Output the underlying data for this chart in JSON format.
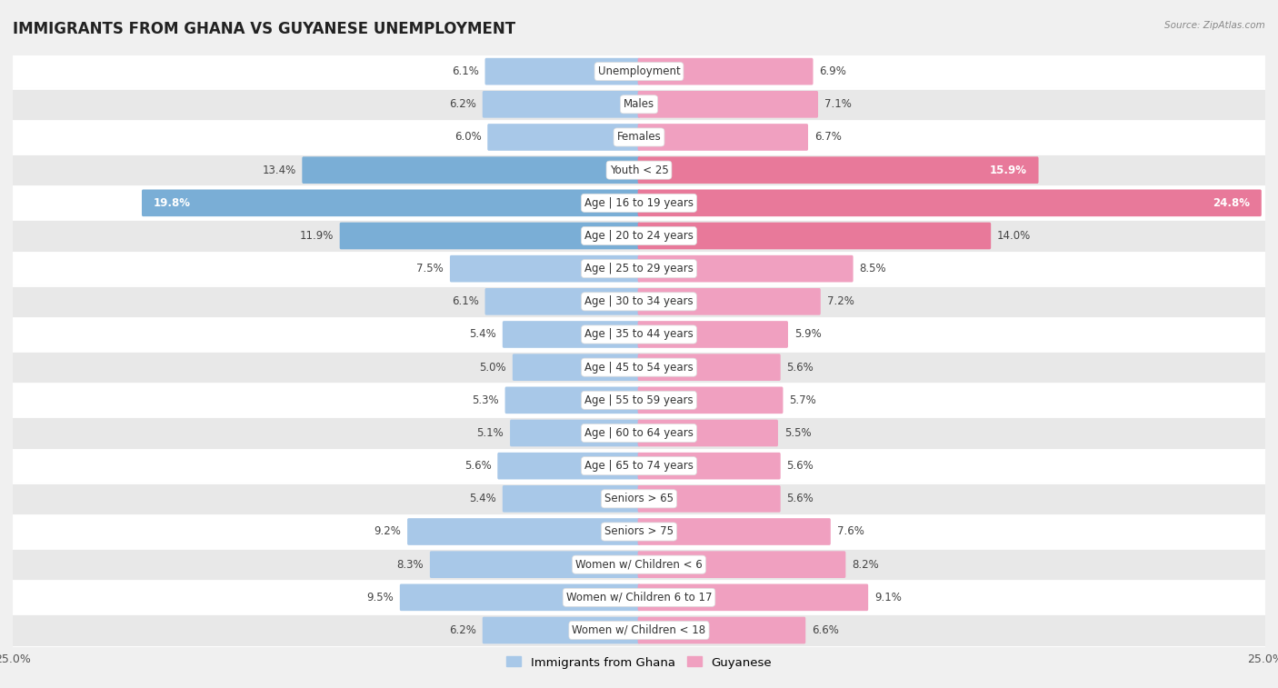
{
  "title": "IMMIGRANTS FROM GHANA VS GUYANESE UNEMPLOYMENT",
  "source": "Source: ZipAtlas.com",
  "categories": [
    "Unemployment",
    "Males",
    "Females",
    "Youth < 25",
    "Age | 16 to 19 years",
    "Age | 20 to 24 years",
    "Age | 25 to 29 years",
    "Age | 30 to 34 years",
    "Age | 35 to 44 years",
    "Age | 45 to 54 years",
    "Age | 55 to 59 years",
    "Age | 60 to 64 years",
    "Age | 65 to 74 years",
    "Seniors > 65",
    "Seniors > 75",
    "Women w/ Children < 6",
    "Women w/ Children 6 to 17",
    "Women w/ Children < 18"
  ],
  "ghana_values": [
    6.1,
    6.2,
    6.0,
    13.4,
    19.8,
    11.9,
    7.5,
    6.1,
    5.4,
    5.0,
    5.3,
    5.1,
    5.6,
    5.4,
    9.2,
    8.3,
    9.5,
    6.2
  ],
  "guyanese_values": [
    6.9,
    7.1,
    6.7,
    15.9,
    24.8,
    14.0,
    8.5,
    7.2,
    5.9,
    5.6,
    5.7,
    5.5,
    5.6,
    5.6,
    7.6,
    8.2,
    9.1,
    6.6
  ],
  "ghana_color": "#a8c8e8",
  "guyanese_color": "#f0a0c0",
  "ghana_highlight_color": "#7aaed6",
  "guyanese_highlight_color": "#e8799a",
  "highlight_rows": [
    3,
    4,
    5
  ],
  "bar_height": 0.72,
  "xlim": 25.0,
  "fig_bg_color": "#f0f0f0",
  "row_bg_odd": "#ffffff",
  "row_bg_even": "#e8e8e8",
  "title_fontsize": 12,
  "category_fontsize": 8.5,
  "value_fontsize": 8.5,
  "legend_fontsize": 9.5
}
